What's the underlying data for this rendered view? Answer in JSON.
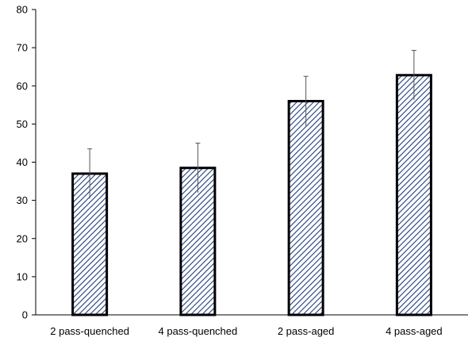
{
  "chart_data": {
    "type": "bar",
    "title": "",
    "xlabel": "",
    "ylabel": "",
    "categories": [
      "2 pass-quenched",
      "4 pass-quenched",
      "2 pass-aged",
      "4 pass-aged"
    ],
    "values": [
      37,
      38.5,
      56,
      62.8
    ],
    "error_plus": [
      6.5,
      6.5,
      6.5,
      6.5
    ],
    "error_minus": [
      6.5,
      6.5,
      6.5,
      6.5
    ],
    "ylim": [
      0,
      80
    ],
    "yticks": [
      0,
      10,
      20,
      30,
      40,
      50,
      60,
      70,
      80
    ],
    "grid": false,
    "legend": "none",
    "bar_fill_pattern": "diagonal-hatch",
    "colors": {
      "bar_hatch": "#1f3d7a",
      "bar_fill": "#ffffff",
      "bar_border": "#000000",
      "axis": "#000000",
      "error_bar": "#555555"
    }
  }
}
